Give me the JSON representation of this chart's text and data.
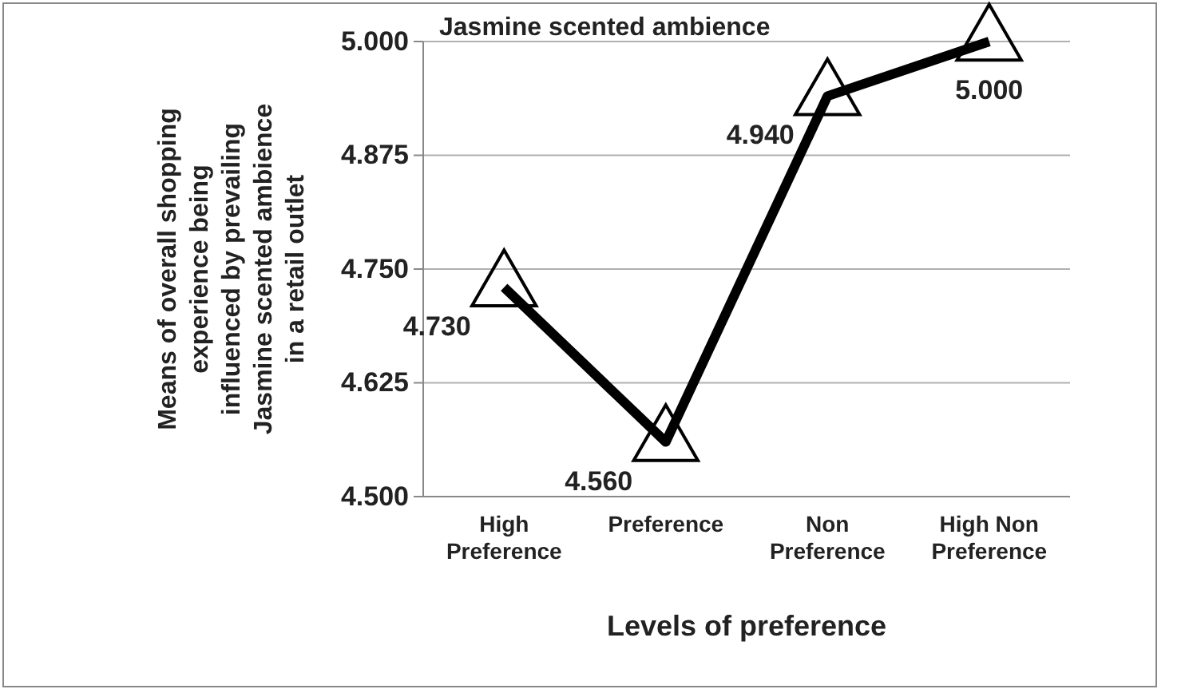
{
  "chart_data": {
    "type": "line",
    "title": "Jasmine scented ambience",
    "xlabel": "Levels of preference",
    "ylabel": "Means of overall shopping\nexperience being\ninfluenced by prevailing\nJasmine scented ambience\nin a retail outlet",
    "categories": [
      "High\nPreference",
      "Preference",
      "Non\nPreference",
      "High Non\nPreference"
    ],
    "series": [
      {
        "color": "#000000",
        "values": [
          4.73,
          4.56,
          4.94,
          5.0
        ],
        "value_labels": [
          "4.730",
          "4.560",
          "4.940",
          "5.000"
        ]
      }
    ],
    "ylim": [
      4.5,
      5.0
    ],
    "yticks": [
      {
        "value": 4.5,
        "label": "4.500"
      },
      {
        "value": 4.625,
        "label": "4.625"
      },
      {
        "value": 4.75,
        "label": "4.750"
      },
      {
        "value": 4.875,
        "label": "4.875"
      },
      {
        "value": 5.0,
        "label": "5.000"
      }
    ],
    "grid": "y",
    "marker": "triangle",
    "line_style": "solid"
  }
}
